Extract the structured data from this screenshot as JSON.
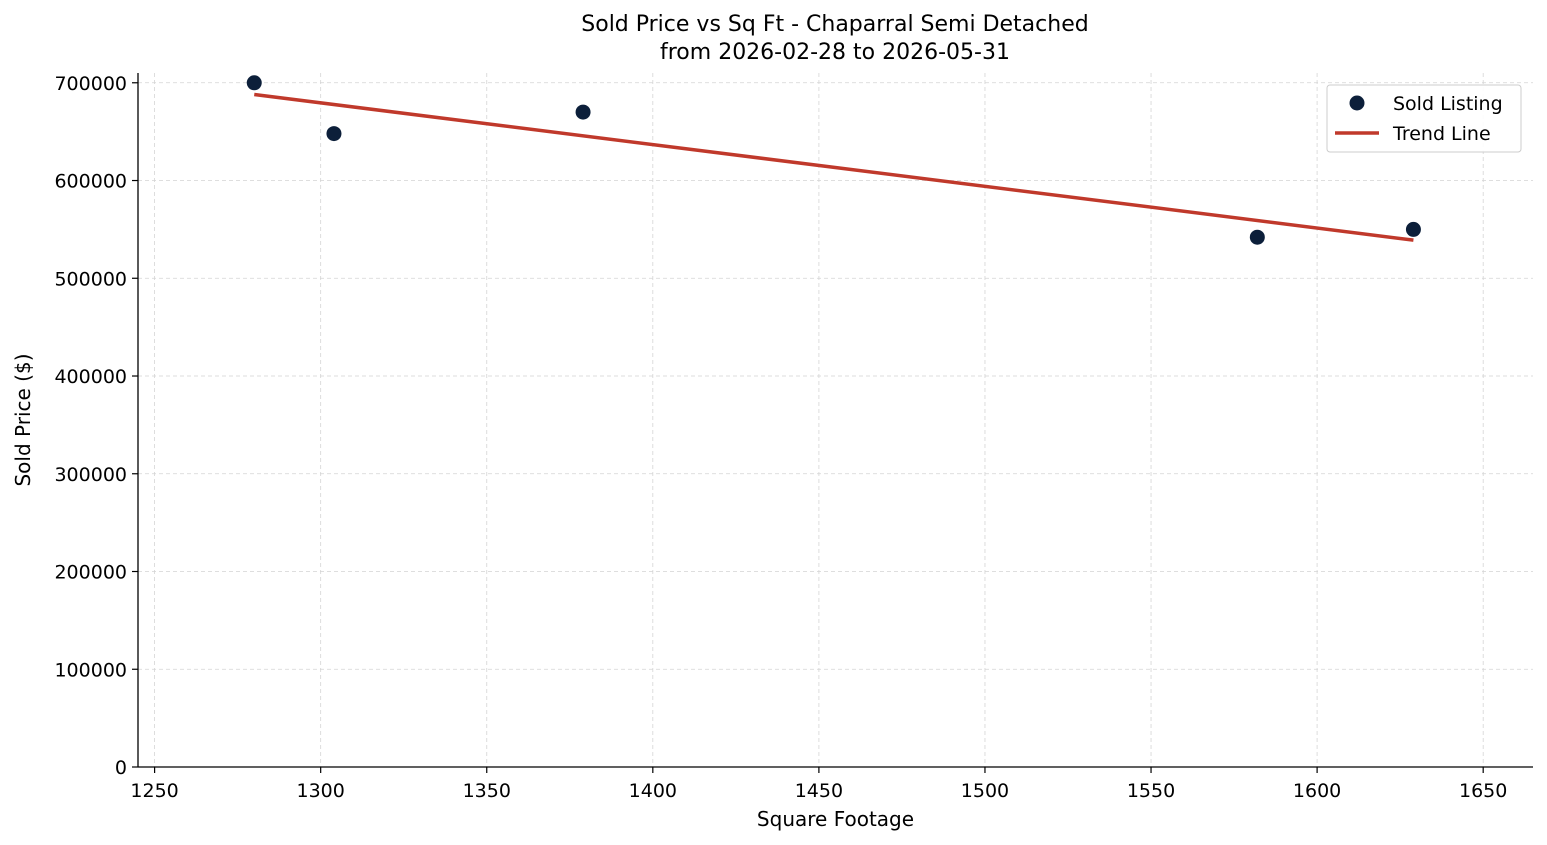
{
  "chart_data": {
    "type": "scatter",
    "title": "Sold Price vs Sq Ft - Chaparral Semi Detached",
    "subtitle": "from 2026-02-28 to 2026-05-31",
    "xlabel": "Square Footage",
    "ylabel": "Sold Price ($)",
    "xlim": [
      1245,
      1665
    ],
    "ylim": [
      0,
      710000
    ],
    "xticks": [
      1250,
      1300,
      1350,
      1400,
      1450,
      1500,
      1550,
      1600,
      1650
    ],
    "yticks": [
      0,
      100000,
      200000,
      300000,
      400000,
      500000,
      600000,
      700000
    ],
    "grid": true,
    "legend_position": "top-right",
    "series": [
      {
        "name": "Sold Listing",
        "kind": "scatter",
        "color": "#0c1f3a",
        "points": [
          {
            "x": 1280,
            "y": 700000
          },
          {
            "x": 1304,
            "y": 648000
          },
          {
            "x": 1379,
            "y": 670000
          },
          {
            "x": 1582,
            "y": 542000
          },
          {
            "x": 1629,
            "y": 550000
          }
        ]
      },
      {
        "name": "Trend Line",
        "kind": "line",
        "color": "#c0392b",
        "points": [
          {
            "x": 1280,
            "y": 688000
          },
          {
            "x": 1629,
            "y": 539000
          }
        ]
      }
    ]
  }
}
